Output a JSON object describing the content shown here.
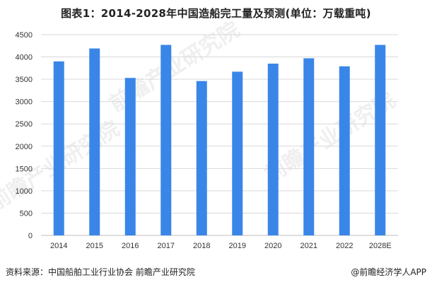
{
  "title": "图表1：2014-2028年中国造船完工量及预测(单位：万载重吨)",
  "footer": {
    "source": "资料来源：中国船舶工业行业协会 前瞻产业研究院",
    "brand": "@前瞻经济学人APP"
  },
  "watermark": {
    "text": "前瞻产业研究院",
    "sub": "FORWARD THE ECONOMIST"
  },
  "colors": {
    "bar": "#3a86e8",
    "grid": "#d9d9d9",
    "axis": "#bfbfbf",
    "tick_text": "#333333"
  },
  "chart_data": {
    "type": "bar",
    "title": "图表1：2014-2028年中国造船完工量及预测(单位：万载重吨)",
    "categories": [
      "2014",
      "2015",
      "2016",
      "2017",
      "2018",
      "2019",
      "2020",
      "2021",
      "2022",
      "2028E"
    ],
    "values": [
      3900,
      4190,
      3530,
      4270,
      3460,
      3670,
      3850,
      3970,
      3790,
      4270
    ],
    "xlabel": "",
    "ylabel": "",
    "ylim": [
      0,
      4500
    ],
    "yticks": [
      0,
      500,
      1000,
      1500,
      2000,
      2500,
      3000,
      3500,
      4000,
      4500
    ],
    "grid": true,
    "legend": "none"
  }
}
